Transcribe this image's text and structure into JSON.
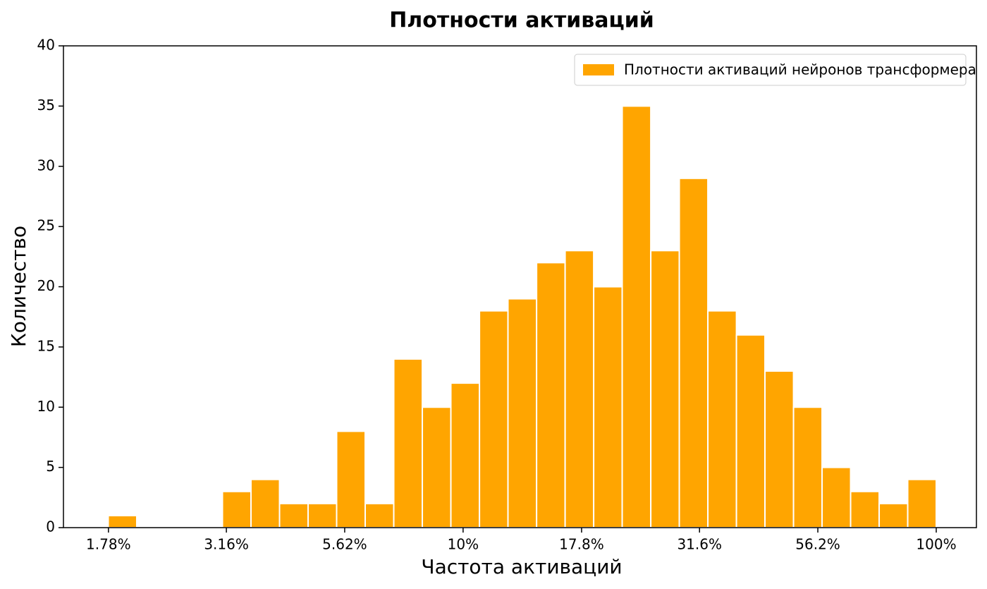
{
  "chart_data": {
    "type": "histogram",
    "title": "Плотности активаций",
    "xlabel": "Частота активаций",
    "ylabel": "Количество",
    "legend": "upper right",
    "series": [
      {
        "name": "Плотности активаций нейронов трансформера",
        "color": "#ffa500",
        "values": [
          1,
          0,
          0,
          0,
          3,
          4,
          2,
          2,
          8,
          2,
          14,
          10,
          12,
          18,
          19,
          22,
          23,
          20,
          35,
          23,
          29,
          18,
          16,
          13,
          10,
          5,
          3,
          2,
          4
        ]
      }
    ],
    "bins": [
      1.778,
      2.043,
      2.348,
      2.698,
      3.1,
      3.562,
      4.093,
      4.703,
      5.404,
      6.21,
      7.136,
      8.2,
      9.422,
      10.83,
      12.44,
      14.3,
      16.43,
      18.88,
      21.69,
      24.93,
      28.64,
      32.91,
      37.82,
      43.45,
      49.93,
      57.37,
      65.92,
      75.75,
      87.04,
      100
    ],
    "xscale": "log",
    "xlim": [
      1.43,
      121.6
    ],
    "xticks": [
      {
        "value": 1.78,
        "label": "1.78%"
      },
      {
        "value": 3.16,
        "label": "3.16%"
      },
      {
        "value": 5.62,
        "label": "5.62%"
      },
      {
        "value": 10,
        "label": "10%"
      },
      {
        "value": 17.8,
        "label": "17.8%"
      },
      {
        "value": 31.6,
        "label": "31.6%"
      },
      {
        "value": 56.2,
        "label": "56.2%"
      },
      {
        "value": 100,
        "label": "100%"
      }
    ],
    "ylim": [
      0,
      40
    ],
    "yticks": [
      0,
      5,
      10,
      15,
      20,
      25,
      30,
      35,
      40
    ],
    "grid": false
  }
}
